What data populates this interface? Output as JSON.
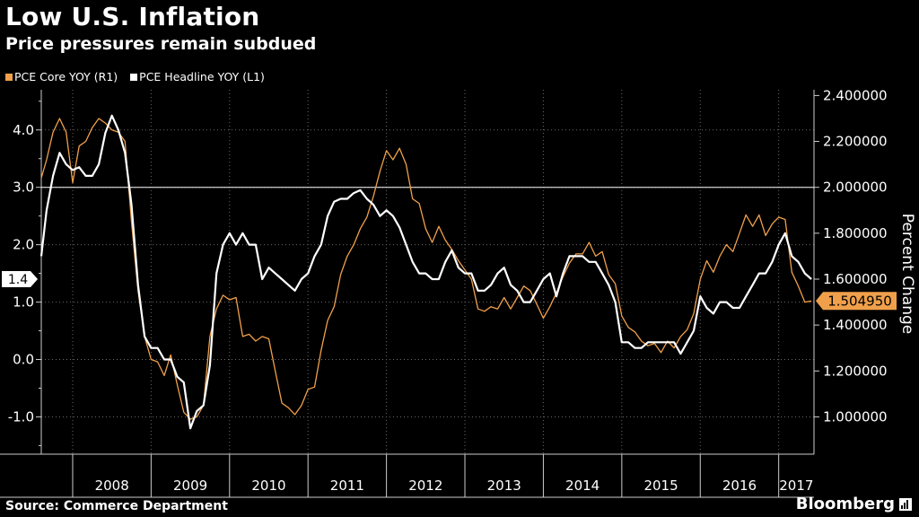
{
  "title": "Low U.S. Inflation",
  "subtitle": "Price pressures remain subdued",
  "source": "Source: Commerce Department",
  "brand": "Bloomberg",
  "colors": {
    "core": "#f0a04b",
    "headline": "#ffffff",
    "background": "#000000",
    "grid": "#777777"
  },
  "chart_data": {
    "type": "line",
    "title": "Low U.S. Inflation",
    "subtitle": "Price pressures remain subdued",
    "ylabel_right": "Percent Change",
    "x_range": [
      2007.6,
      2017.45
    ],
    "y_left_range": [
      -1.65,
      4.7
    ],
    "y_left_ticks": [
      "-1.0",
      "0.0",
      "1.0",
      "2.0",
      "3.0",
      "4.0"
    ],
    "y_right_ticks": [
      "1.000000",
      "1.200000",
      "1.400000",
      "1.600000",
      "1.800000",
      "2.000000",
      "2.200000",
      "2.400000"
    ],
    "x_tick_labels": [
      "2008",
      "2009",
      "2010",
      "2011",
      "2012",
      "2013",
      "2014",
      "2015",
      "2016",
      "2017"
    ],
    "reference_line": 3.0,
    "last_value_labels": {
      "left": "1.4",
      "right": "1.504950"
    },
    "series": [
      {
        "name": "PCE Core YOY (R1)",
        "axis": "right",
        "color": "#f0a04b",
        "points": [
          [
            2007.6,
            2.04
          ],
          [
            2007.667,
            2.12
          ],
          [
            2007.75,
            2.24
          ],
          [
            2007.833,
            2.3
          ],
          [
            2007.917,
            2.24
          ],
          [
            2008.0,
            2.02
          ],
          [
            2008.083,
            2.18
          ],
          [
            2008.167,
            2.2
          ],
          [
            2008.25,
            2.26
          ],
          [
            2008.333,
            2.3
          ],
          [
            2008.417,
            2.28
          ],
          [
            2008.5,
            2.25
          ],
          [
            2008.583,
            2.24
          ],
          [
            2008.667,
            2.2
          ],
          [
            2008.75,
            1.85
          ],
          [
            2008.833,
            1.55
          ],
          [
            2008.917,
            1.35
          ],
          [
            2009.0,
            1.25
          ],
          [
            2009.083,
            1.24
          ],
          [
            2009.167,
            1.18
          ],
          [
            2009.25,
            1.27
          ],
          [
            2009.333,
            1.14
          ],
          [
            2009.417,
            1.02
          ],
          [
            2009.5,
            0.99
          ],
          [
            2009.583,
            1.0
          ],
          [
            2009.667,
            1.05
          ],
          [
            2009.75,
            1.35
          ],
          [
            2009.833,
            1.47
          ],
          [
            2009.917,
            1.53
          ],
          [
            2010.0,
            1.51
          ],
          [
            2010.083,
            1.52
          ],
          [
            2010.167,
            1.35
          ],
          [
            2010.25,
            1.36
          ],
          [
            2010.333,
            1.33
          ],
          [
            2010.417,
            1.35
          ],
          [
            2010.5,
            1.34
          ],
          [
            2010.583,
            1.2
          ],
          [
            2010.667,
            1.06
          ],
          [
            2010.75,
            1.04
          ],
          [
            2010.833,
            1.01
          ],
          [
            2010.917,
            1.05
          ],
          [
            2011.0,
            1.12
          ],
          [
            2011.083,
            1.13
          ],
          [
            2011.167,
            1.29
          ],
          [
            2011.25,
            1.42
          ],
          [
            2011.333,
            1.48
          ],
          [
            2011.417,
            1.62
          ],
          [
            2011.5,
            1.7
          ],
          [
            2011.583,
            1.75
          ],
          [
            2011.667,
            1.82
          ],
          [
            2011.75,
            1.87
          ],
          [
            2011.833,
            1.96
          ],
          [
            2011.917,
            2.07
          ],
          [
            2012.0,
            2.16
          ],
          [
            2012.083,
            2.12
          ],
          [
            2012.167,
            2.17
          ],
          [
            2012.25,
            2.1
          ],
          [
            2012.333,
            1.95
          ],
          [
            2012.417,
            1.93
          ],
          [
            2012.5,
            1.82
          ],
          [
            2012.583,
            1.76
          ],
          [
            2012.667,
            1.83
          ],
          [
            2012.75,
            1.77
          ],
          [
            2012.833,
            1.73
          ],
          [
            2012.917,
            1.68
          ],
          [
            2013.0,
            1.64
          ],
          [
            2013.083,
            1.6
          ],
          [
            2013.167,
            1.47
          ],
          [
            2013.25,
            1.46
          ],
          [
            2013.333,
            1.48
          ],
          [
            2013.417,
            1.47
          ],
          [
            2013.5,
            1.52
          ],
          [
            2013.583,
            1.47
          ],
          [
            2013.667,
            1.52
          ],
          [
            2013.75,
            1.57
          ],
          [
            2013.833,
            1.55
          ],
          [
            2013.917,
            1.49
          ],
          [
            2014.0,
            1.43
          ],
          [
            2014.083,
            1.48
          ],
          [
            2014.167,
            1.54
          ],
          [
            2014.25,
            1.61
          ],
          [
            2014.333,
            1.67
          ],
          [
            2014.417,
            1.71
          ],
          [
            2014.5,
            1.71
          ],
          [
            2014.583,
            1.76
          ],
          [
            2014.667,
            1.7
          ],
          [
            2014.75,
            1.72
          ],
          [
            2014.833,
            1.62
          ],
          [
            2014.917,
            1.58
          ],
          [
            2015.0,
            1.44
          ],
          [
            2015.083,
            1.39
          ],
          [
            2015.167,
            1.37
          ],
          [
            2015.25,
            1.33
          ],
          [
            2015.333,
            1.31
          ],
          [
            2015.417,
            1.32
          ],
          [
            2015.5,
            1.28
          ],
          [
            2015.583,
            1.33
          ],
          [
            2015.667,
            1.3
          ],
          [
            2015.75,
            1.35
          ],
          [
            2015.833,
            1.38
          ],
          [
            2015.917,
            1.45
          ],
          [
            2016.0,
            1.6
          ],
          [
            2016.083,
            1.68
          ],
          [
            2016.167,
            1.63
          ],
          [
            2016.25,
            1.7
          ],
          [
            2016.333,
            1.75
          ],
          [
            2016.417,
            1.72
          ],
          [
            2016.5,
            1.8
          ],
          [
            2016.583,
            1.88
          ],
          [
            2016.667,
            1.83
          ],
          [
            2016.75,
            1.88
          ],
          [
            2016.833,
            1.79
          ],
          [
            2016.917,
            1.84
          ],
          [
            2017.0,
            1.87
          ],
          [
            2017.083,
            1.86
          ],
          [
            2017.167,
            1.63
          ],
          [
            2017.25,
            1.57
          ],
          [
            2017.333,
            1.5
          ],
          [
            2017.417,
            1.505
          ]
        ]
      },
      {
        "name": "PCE Headline YOY (L1)",
        "axis": "left",
        "color": "#ffffff",
        "points": [
          [
            2007.6,
            1.8
          ],
          [
            2007.667,
            2.6
          ],
          [
            2007.75,
            3.2
          ],
          [
            2007.833,
            3.6
          ],
          [
            2007.917,
            3.4
          ],
          [
            2008.0,
            3.3
          ],
          [
            2008.083,
            3.35
          ],
          [
            2008.167,
            3.2
          ],
          [
            2008.25,
            3.2
          ],
          [
            2008.333,
            3.4
          ],
          [
            2008.417,
            3.95
          ],
          [
            2008.5,
            4.25
          ],
          [
            2008.583,
            4.0
          ],
          [
            2008.667,
            3.6
          ],
          [
            2008.75,
            2.7
          ],
          [
            2008.833,
            1.3
          ],
          [
            2008.917,
            0.4
          ],
          [
            2009.0,
            0.2
          ],
          [
            2009.083,
            0.2
          ],
          [
            2009.167,
            0.0
          ],
          [
            2009.25,
            0.0
          ],
          [
            2009.333,
            -0.3
          ],
          [
            2009.417,
            -0.4
          ],
          [
            2009.5,
            -1.2
          ],
          [
            2009.583,
            -0.9
          ],
          [
            2009.667,
            -0.8
          ],
          [
            2009.75,
            -0.1
          ],
          [
            2009.833,
            1.5
          ],
          [
            2009.917,
            2.0
          ],
          [
            2010.0,
            2.2
          ],
          [
            2010.083,
            2.0
          ],
          [
            2010.167,
            2.2
          ],
          [
            2010.25,
            2.0
          ],
          [
            2010.333,
            2.0
          ],
          [
            2010.417,
            1.4
          ],
          [
            2010.5,
            1.6
          ],
          [
            2010.583,
            1.5
          ],
          [
            2010.667,
            1.4
          ],
          [
            2010.75,
            1.3
          ],
          [
            2010.833,
            1.2
          ],
          [
            2010.917,
            1.4
          ],
          [
            2011.0,
            1.5
          ],
          [
            2011.083,
            1.8
          ],
          [
            2011.167,
            2.0
          ],
          [
            2011.25,
            2.5
          ],
          [
            2011.333,
            2.75
          ],
          [
            2011.417,
            2.8
          ],
          [
            2011.5,
            2.8
          ],
          [
            2011.583,
            2.9
          ],
          [
            2011.667,
            2.95
          ],
          [
            2011.75,
            2.8
          ],
          [
            2011.833,
            2.7
          ],
          [
            2011.917,
            2.5
          ],
          [
            2012.0,
            2.6
          ],
          [
            2012.083,
            2.5
          ],
          [
            2012.167,
            2.3
          ],
          [
            2012.25,
            2.0
          ],
          [
            2012.333,
            1.7
          ],
          [
            2012.417,
            1.5
          ],
          [
            2012.5,
            1.5
          ],
          [
            2012.583,
            1.4
          ],
          [
            2012.667,
            1.4
          ],
          [
            2012.75,
            1.7
          ],
          [
            2012.833,
            1.9
          ],
          [
            2012.917,
            1.6
          ],
          [
            2013.0,
            1.5
          ],
          [
            2013.083,
            1.5
          ],
          [
            2013.167,
            1.2
          ],
          [
            2013.25,
            1.2
          ],
          [
            2013.333,
            1.3
          ],
          [
            2013.417,
            1.5
          ],
          [
            2013.5,
            1.6
          ],
          [
            2013.583,
            1.3
          ],
          [
            2013.667,
            1.2
          ],
          [
            2013.75,
            1.0
          ],
          [
            2013.833,
            1.0
          ],
          [
            2013.917,
            1.2
          ],
          [
            2014.0,
            1.4
          ],
          [
            2014.083,
            1.5
          ],
          [
            2014.167,
            1.1
          ],
          [
            2014.25,
            1.5
          ],
          [
            2014.333,
            1.8
          ],
          [
            2014.417,
            1.8
          ],
          [
            2014.5,
            1.8
          ],
          [
            2014.583,
            1.7
          ],
          [
            2014.667,
            1.7
          ],
          [
            2014.75,
            1.5
          ],
          [
            2014.833,
            1.3
          ],
          [
            2014.917,
            1.0
          ],
          [
            2015.0,
            0.3
          ],
          [
            2015.083,
            0.3
          ],
          [
            2015.167,
            0.2
          ],
          [
            2015.25,
            0.2
          ],
          [
            2015.333,
            0.3
          ],
          [
            2015.417,
            0.3
          ],
          [
            2015.5,
            0.3
          ],
          [
            2015.583,
            0.3
          ],
          [
            2015.667,
            0.3
          ],
          [
            2015.75,
            0.1
          ],
          [
            2015.833,
            0.3
          ],
          [
            2015.917,
            0.5
          ],
          [
            2016.0,
            1.1
          ],
          [
            2016.083,
            0.9
          ],
          [
            2016.167,
            0.8
          ],
          [
            2016.25,
            1.0
          ],
          [
            2016.333,
            1.0
          ],
          [
            2016.417,
            0.9
          ],
          [
            2016.5,
            0.9
          ],
          [
            2016.583,
            1.1
          ],
          [
            2016.667,
            1.3
          ],
          [
            2016.75,
            1.5
          ],
          [
            2016.833,
            1.5
          ],
          [
            2016.917,
            1.7
          ],
          [
            2017.0,
            2.0
          ],
          [
            2017.083,
            2.2
          ],
          [
            2017.167,
            1.8
          ],
          [
            2017.25,
            1.7
          ],
          [
            2017.333,
            1.5
          ],
          [
            2017.417,
            1.4
          ]
        ]
      }
    ]
  }
}
